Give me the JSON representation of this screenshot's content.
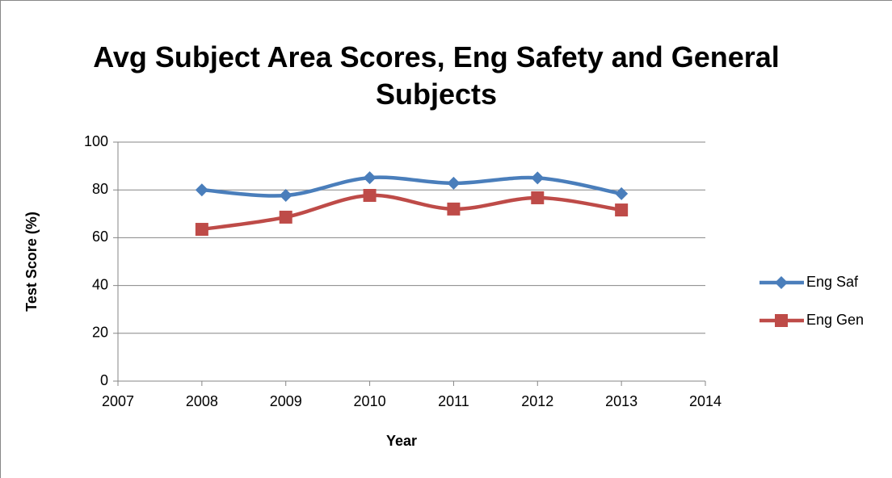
{
  "chart_data": {
    "type": "line",
    "title": "Avg Subject Area Scores, Eng Safety and General Subjects",
    "x_label": "Year",
    "y_label": "Test Score (%)",
    "x": [
      2008,
      2009,
      2010,
      2011,
      2012,
      2013
    ],
    "series": [
      {
        "name": "Eng Saf",
        "color": "#4a7ebb",
        "marker": "diamond",
        "values": [
          80,
          77.7,
          85.1,
          82.8,
          85,
          78.4
        ]
      },
      {
        "name": "Eng Gen",
        "color": "#be4b48",
        "marker": "square",
        "values": [
          63.5,
          68.6,
          77.7,
          72,
          76.7,
          71.6
        ]
      }
    ],
    "smooth": true,
    "xlim": [
      2007,
      2014
    ],
    "xticks": [
      2007,
      2008,
      2009,
      2010,
      2011,
      2012,
      2013,
      2014
    ],
    "ylim": [
      0,
      100
    ],
    "yticks": [
      0,
      20,
      40,
      60,
      80,
      100
    ],
    "grid": true,
    "legend": "right"
  }
}
